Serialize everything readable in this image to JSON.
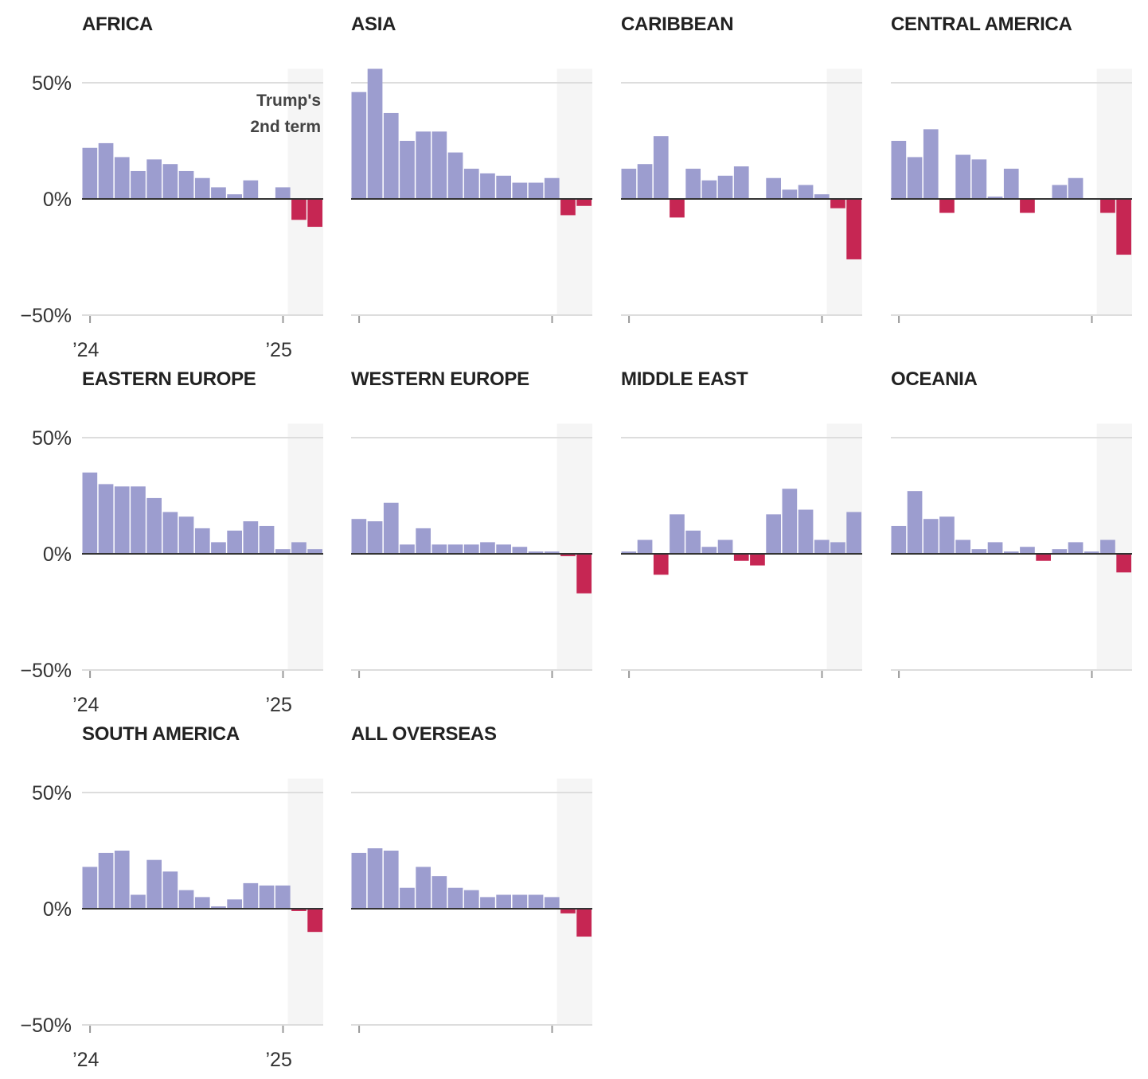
{
  "chart_data": {
    "type": "bar",
    "layout": "small-multiples",
    "ylabel_ticks": [
      "50%",
      "0%",
      "−50%"
    ],
    "ylim": [
      -50,
      56
    ],
    "yticks": [
      50,
      0,
      -50
    ],
    "x_tick_labels": [
      "’24",
      "’25"
    ],
    "x": [
      "Jan 2024",
      "Feb 2024",
      "Mar 2024",
      "Apr 2024",
      "May 2024",
      "Jun 2024",
      "Jul 2024",
      "Aug 2024",
      "Sep 2024",
      "Oct 2024",
      "Nov 2024",
      "Dec 2024",
      "Jan 2025",
      "Feb 2025",
      "Mar 2025"
    ],
    "highlight_start_index": 13,
    "annotation": "Trump's\n2nd term",
    "annotation_lines": [
      "Trump's",
      "2nd term"
    ],
    "colors": {
      "positive": "#9c9dcf",
      "negative": "#c62653",
      "highlight": "#f5f5f5",
      "grid": "#dddddd",
      "zero": "#333333"
    },
    "series": [
      {
        "name": "AFRICA",
        "values": [
          22,
          24,
          18,
          12,
          17,
          15,
          12,
          9,
          5,
          2,
          8,
          0,
          5,
          -9,
          -12
        ]
      },
      {
        "name": "ASIA",
        "values": [
          46,
          56,
          37,
          25,
          29,
          29,
          20,
          13,
          11,
          10,
          7,
          7,
          9,
          -7,
          -3
        ]
      },
      {
        "name": "CARIBBEAN",
        "values": [
          13,
          15,
          27,
          -8,
          13,
          8,
          10,
          14,
          0,
          9,
          4,
          6,
          2,
          -4,
          -26
        ]
      },
      {
        "name": "CENTRAL AMERICA",
        "values": [
          25,
          18,
          30,
          -6,
          19,
          17,
          1,
          13,
          -6,
          0,
          6,
          9,
          0,
          -6,
          -24
        ]
      },
      {
        "name": "EASTERN EUROPE",
        "values": [
          35,
          30,
          29,
          29,
          24,
          18,
          16,
          11,
          5,
          10,
          14,
          12,
          2,
          5,
          2
        ]
      },
      {
        "name": "WESTERN EUROPE",
        "values": [
          15,
          14,
          22,
          4,
          11,
          4,
          4,
          4,
          5,
          4,
          3,
          1,
          1,
          -1,
          -17
        ]
      },
      {
        "name": "MIDDLE EAST",
        "values": [
          1,
          6,
          -9,
          17,
          10,
          3,
          6,
          -3,
          -5,
          17,
          28,
          19,
          6,
          5,
          18
        ]
      },
      {
        "name": "OCEANIA",
        "values": [
          12,
          27,
          15,
          16,
          6,
          2,
          5,
          1,
          3,
          -3,
          2,
          5,
          1,
          6,
          -8
        ]
      },
      {
        "name": "SOUTH AMERICA",
        "values": [
          18,
          24,
          25,
          6,
          21,
          16,
          8,
          5,
          1,
          4,
          11,
          10,
          10,
          -1,
          -10
        ]
      },
      {
        "name": "ALL OVERSEAS",
        "values": [
          24,
          26,
          25,
          9,
          18,
          14,
          9,
          8,
          5,
          6,
          6,
          6,
          5,
          -2,
          -12
        ]
      }
    ]
  }
}
